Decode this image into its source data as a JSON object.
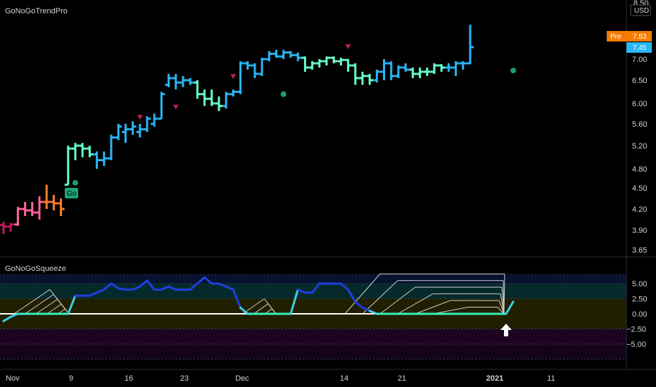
{
  "indicator_top": "GoNoGoTrendPro",
  "indicator_bottom": "GoNoGoSqueeze",
  "currency": "USD",
  "price_axis_top": "8.50",
  "pre_badge": {
    "label": "Pre",
    "value": "7.53",
    "color": "#f57c00"
  },
  "last_badge": {
    "value": "7.45",
    "color": "#29b6f6"
  },
  "go_marker": "Go",
  "colors": {
    "strong_go": "#29b6f6",
    "go": "#66ffcc",
    "nogo": "#ff6699",
    "strong_nogo": "#c2185b",
    "amber": "#ff7f2a",
    "continuation_up": "#1a9e6e",
    "countertrend_down": "#c2185b"
  },
  "chart_data": [
    {
      "type": "ohlc",
      "title": "GoNoGoTrendPro",
      "y_ticks": [
        3.65,
        3.9,
        4.2,
        4.5,
        4.8,
        5.2,
        5.6,
        6.0,
        6.5,
        7.0,
        7.45,
        7.53,
        8.5
      ],
      "y_tick_labels": [
        "3.65",
        "3.90",
        "4.20",
        "4.50",
        "4.80",
        "5.20",
        "5.60",
        "6.00",
        "6.50",
        "7.00",
        "7.45",
        "7.53",
        "8.50"
      ],
      "x_ticks": [
        "Nov",
        "9",
        "16",
        "23",
        "Dec",
        "14",
        "21",
        "2021",
        "11"
      ],
      "bars": [
        {
          "o": 3.97,
          "h": 4.02,
          "l": 3.85,
          "c": 3.95,
          "color": "strong_nogo"
        },
        {
          "o": 3.95,
          "h": 4.0,
          "l": 3.88,
          "c": 3.98,
          "color": "strong_nogo"
        },
        {
          "o": 3.98,
          "h": 4.23,
          "l": 3.96,
          "c": 4.2,
          "color": "nogo"
        },
        {
          "o": 4.2,
          "h": 4.3,
          "l": 4.1,
          "c": 4.18,
          "color": "nogo"
        },
        {
          "o": 4.18,
          "h": 4.3,
          "l": 4.1,
          "c": 4.15,
          "color": "nogo"
        },
        {
          "o": 4.15,
          "h": 4.38,
          "l": 4.05,
          "c": 4.3,
          "color": "nogo"
        },
        {
          "o": 4.3,
          "h": 4.55,
          "l": 4.2,
          "c": 4.3,
          "color": "amber"
        },
        {
          "o": 4.3,
          "h": 4.4,
          "l": 4.18,
          "c": 4.28,
          "color": "amber"
        },
        {
          "o": 4.28,
          "h": 4.35,
          "l": 4.1,
          "c": 4.2,
          "color": "amber"
        },
        {
          "o": 4.55,
          "h": 5.2,
          "l": 4.55,
          "c": 5.15,
          "color": "go"
        },
        {
          "o": 5.15,
          "h": 5.25,
          "l": 4.95,
          "c": 5.2,
          "color": "go"
        },
        {
          "o": 5.2,
          "h": 5.25,
          "l": 5.0,
          "c": 5.15,
          "color": "go"
        },
        {
          "o": 5.15,
          "h": 5.2,
          "l": 5.0,
          "c": 5.05,
          "color": "go"
        },
        {
          "o": 5.05,
          "h": 5.1,
          "l": 4.8,
          "c": 4.95,
          "color": "strong_go"
        },
        {
          "o": 4.95,
          "h": 5.1,
          "l": 4.85,
          "c": 4.98,
          "color": "strong_go"
        },
        {
          "o": 4.98,
          "h": 5.4,
          "l": 4.95,
          "c": 5.35,
          "color": "strong_go"
        },
        {
          "o": 5.35,
          "h": 5.6,
          "l": 5.3,
          "c": 5.55,
          "color": "strong_go"
        },
        {
          "o": 5.45,
          "h": 5.6,
          "l": 5.25,
          "c": 5.5,
          "color": "strong_go"
        },
        {
          "o": 5.5,
          "h": 5.65,
          "l": 5.4,
          "c": 5.55,
          "color": "strong_go"
        },
        {
          "o": 5.45,
          "h": 5.6,
          "l": 5.35,
          "c": 5.5,
          "color": "strong_go"
        },
        {
          "o": 5.5,
          "h": 5.75,
          "l": 5.45,
          "c": 5.7,
          "color": "strong_go"
        },
        {
          "o": 5.6,
          "h": 5.8,
          "l": 5.55,
          "c": 5.7,
          "color": "strong_go"
        },
        {
          "o": 5.7,
          "h": 6.25,
          "l": 5.7,
          "c": 6.2,
          "color": "strong_go"
        },
        {
          "o": 6.4,
          "h": 6.65,
          "l": 6.35,
          "c": 6.55,
          "color": "strong_go"
        },
        {
          "o": 6.55,
          "h": 6.65,
          "l": 6.3,
          "c": 6.45,
          "color": "strong_go"
        },
        {
          "o": 6.45,
          "h": 6.6,
          "l": 6.35,
          "c": 6.5,
          "color": "strong_go"
        },
        {
          "o": 6.5,
          "h": 6.55,
          "l": 6.4,
          "c": 6.45,
          "color": "strong_go"
        },
        {
          "o": 6.45,
          "h": 6.5,
          "l": 6.1,
          "c": 6.2,
          "color": "go"
        },
        {
          "o": 6.2,
          "h": 6.3,
          "l": 5.95,
          "c": 6.1,
          "color": "go"
        },
        {
          "o": 6.1,
          "h": 6.3,
          "l": 5.95,
          "c": 6.0,
          "color": "go"
        },
        {
          "o": 6.0,
          "h": 6.15,
          "l": 5.85,
          "c": 5.95,
          "color": "go"
        },
        {
          "o": 5.95,
          "h": 6.25,
          "l": 5.9,
          "c": 6.2,
          "color": "strong_go"
        },
        {
          "o": 6.2,
          "h": 6.3,
          "l": 6.15,
          "c": 6.25,
          "color": "strong_go"
        },
        {
          "o": 6.25,
          "h": 6.95,
          "l": 6.2,
          "c": 6.9,
          "color": "strong_go"
        },
        {
          "o": 6.9,
          "h": 6.95,
          "l": 6.75,
          "c": 6.85,
          "color": "strong_go"
        },
        {
          "o": 6.85,
          "h": 6.9,
          "l": 6.55,
          "c": 6.65,
          "color": "strong_go"
        },
        {
          "o": 6.65,
          "h": 7.05,
          "l": 6.6,
          "c": 7.0,
          "color": "strong_go"
        },
        {
          "o": 7.0,
          "h": 7.3,
          "l": 6.95,
          "c": 7.2,
          "color": "strong_go"
        },
        {
          "o": 7.2,
          "h": 7.35,
          "l": 7.05,
          "c": 7.1,
          "color": "strong_go"
        },
        {
          "o": 7.1,
          "h": 7.35,
          "l": 7.0,
          "c": 7.25,
          "color": "strong_go"
        },
        {
          "o": 7.25,
          "h": 7.3,
          "l": 7.05,
          "c": 7.15,
          "color": "strong_go"
        },
        {
          "o": 7.15,
          "h": 7.25,
          "l": 6.95,
          "c": 7.05,
          "color": "strong_go"
        },
        {
          "o": 7.05,
          "h": 7.1,
          "l": 6.7,
          "c": 6.8,
          "color": "go"
        },
        {
          "o": 6.8,
          "h": 6.95,
          "l": 6.75,
          "c": 6.9,
          "color": "go"
        },
        {
          "o": 6.9,
          "h": 7.0,
          "l": 6.8,
          "c": 6.95,
          "color": "go"
        },
        {
          "o": 6.95,
          "h": 7.1,
          "l": 6.85,
          "c": 7.05,
          "color": "go"
        },
        {
          "o": 7.05,
          "h": 7.1,
          "l": 6.9,
          "c": 6.95,
          "color": "go"
        },
        {
          "o": 6.95,
          "h": 7.05,
          "l": 6.85,
          "c": 6.98,
          "color": "go"
        },
        {
          "o": 6.98,
          "h": 7.0,
          "l": 6.7,
          "c": 6.85,
          "color": "go"
        },
        {
          "o": 6.85,
          "h": 6.9,
          "l": 6.4,
          "c": 6.55,
          "color": "go"
        },
        {
          "o": 6.55,
          "h": 6.7,
          "l": 6.4,
          "c": 6.6,
          "color": "go"
        },
        {
          "o": 6.6,
          "h": 6.65,
          "l": 6.4,
          "c": 6.5,
          "color": "go"
        },
        {
          "o": 6.5,
          "h": 6.75,
          "l": 6.45,
          "c": 6.7,
          "color": "strong_go"
        },
        {
          "o": 6.7,
          "h": 7.0,
          "l": 6.5,
          "c": 6.9,
          "color": "strong_go"
        },
        {
          "o": 6.9,
          "h": 6.95,
          "l": 6.5,
          "c": 6.6,
          "color": "strong_go"
        },
        {
          "o": 6.6,
          "h": 6.85,
          "l": 6.55,
          "c": 6.8,
          "color": "strong_go"
        },
        {
          "o": 6.8,
          "h": 6.9,
          "l": 6.7,
          "c": 6.75,
          "color": "strong_go"
        },
        {
          "o": 6.75,
          "h": 6.8,
          "l": 6.55,
          "c": 6.65,
          "color": "go"
        },
        {
          "o": 6.65,
          "h": 6.8,
          "l": 6.55,
          "c": 6.7,
          "color": "go"
        },
        {
          "o": 6.7,
          "h": 6.8,
          "l": 6.6,
          "c": 6.7,
          "color": "go"
        },
        {
          "o": 6.7,
          "h": 6.9,
          "l": 6.65,
          "c": 6.85,
          "color": "go"
        },
        {
          "o": 6.85,
          "h": 6.88,
          "l": 6.7,
          "c": 6.8,
          "color": "go"
        },
        {
          "o": 6.8,
          "h": 6.9,
          "l": 6.7,
          "c": 6.8,
          "color": "strong_go"
        },
        {
          "o": 6.8,
          "h": 6.95,
          "l": 6.6,
          "c": 6.9,
          "color": "strong_go"
        },
        {
          "o": 6.9,
          "h": 6.95,
          "l": 6.75,
          "c": 6.9,
          "color": "strong_go"
        },
        {
          "o": 6.9,
          "h": 7.85,
          "l": 6.88,
          "c": 7.45,
          "color": "strong_go"
        }
      ],
      "markers": [
        {
          "bar": 10,
          "type": "dot",
          "price": 4.58,
          "color": "continuation_up"
        },
        {
          "bar": 19,
          "type": "arrow_down",
          "price": 5.72,
          "color": "countertrend_down"
        },
        {
          "bar": 24,
          "type": "arrow_down",
          "price": 5.92,
          "color": "countertrend_down"
        },
        {
          "bar": 32,
          "type": "arrow_down",
          "price": 6.58,
          "color": "countertrend_down"
        },
        {
          "bar": 39,
          "type": "dot",
          "price": 6.2,
          "color": "continuation_up"
        },
        {
          "bar": 48,
          "type": "arrow_down",
          "price": 7.45,
          "color": "countertrend_down"
        },
        {
          "bar": 71,
          "type": "dot",
          "price": 6.73,
          "color": "continuation_up"
        }
      ]
    },
    {
      "type": "line",
      "title": "GoNoGoSqueeze",
      "y_ticks": [
        5.0,
        2.5,
        0.0,
        -2.5,
        -5.0
      ],
      "y_tick_labels": [
        "5.00",
        "2.50",
        "0.00",
        "−2.50",
        "−5.00"
      ],
      "values": [
        -1.2,
        -0.5,
        0,
        0,
        0,
        0,
        0,
        0,
        0,
        0,
        3,
        3,
        3,
        3.5,
        4,
        5,
        4.2,
        4,
        4,
        4.5,
        5.5,
        4,
        4,
        4.5,
        4,
        4,
        4,
        5,
        6,
        5,
        5,
        4.5,
        4,
        1,
        0,
        0,
        0,
        0,
        0,
        0,
        0,
        4,
        3.5,
        3.5,
        5,
        5,
        5,
        5,
        4,
        2,
        1,
        0.5,
        0,
        0,
        0,
        0,
        0,
        0,
        0,
        0,
        0,
        0,
        0,
        0,
        0,
        0,
        0,
        0,
        0,
        0,
        0,
        2
      ],
      "colors": [
        "strong_go",
        "go"
      ]
    }
  ]
}
